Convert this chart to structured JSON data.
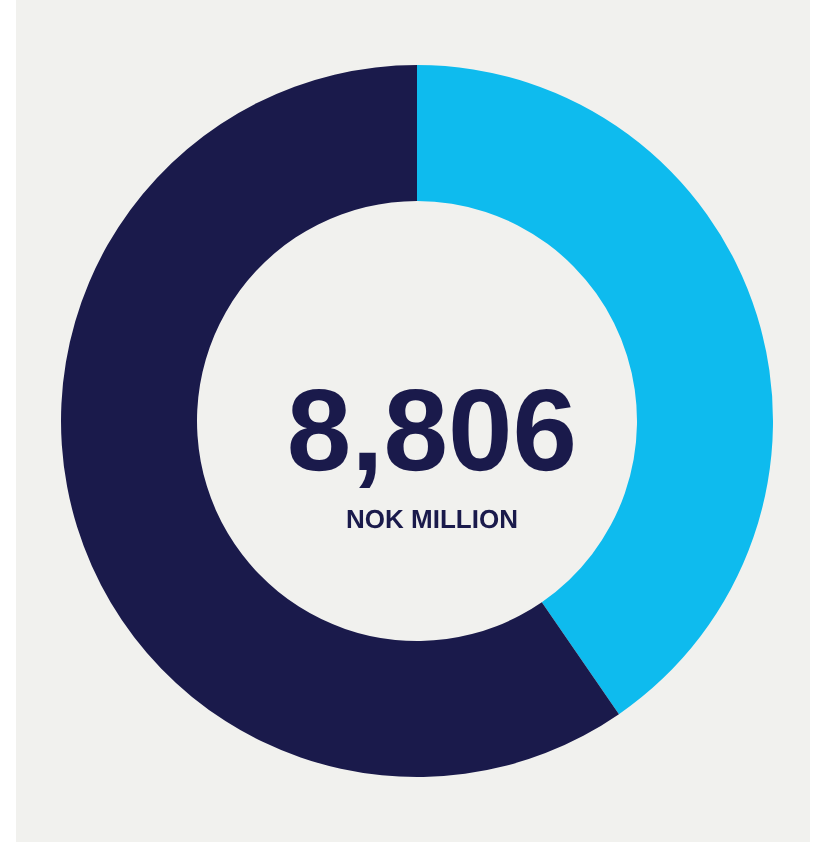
{
  "chart_data": {
    "type": "donut",
    "categories": [
      null,
      null
    ],
    "values": [
      40.4,
      59.6
    ],
    "colors": [
      "#0ebbee",
      "#1a1a4b"
    ],
    "annotations": [
      "8,806",
      "NOK MILLION"
    ]
  }
}
